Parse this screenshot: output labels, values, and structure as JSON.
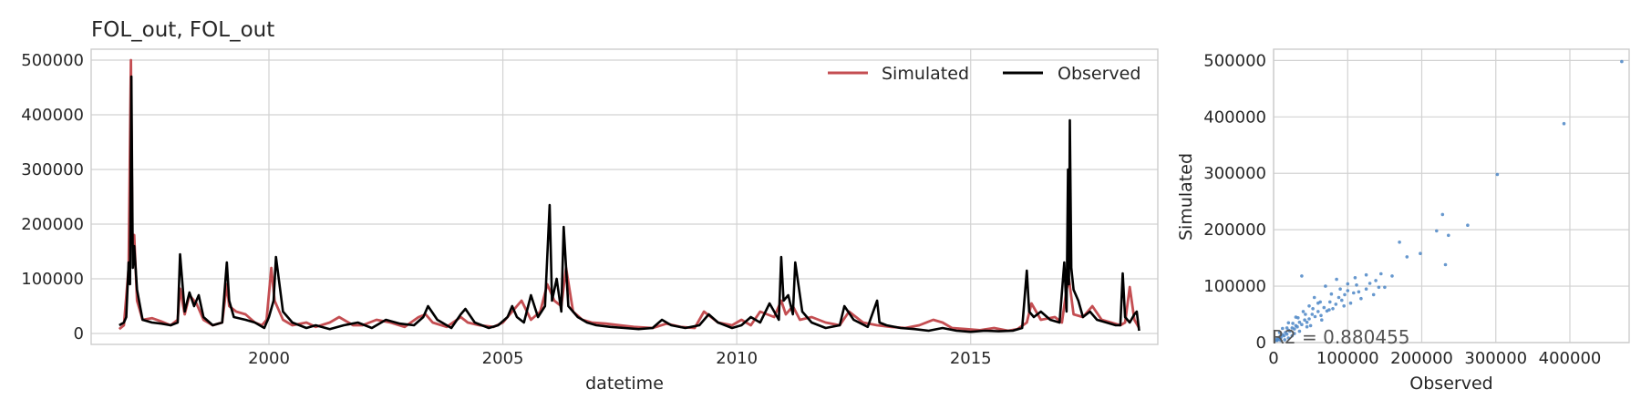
{
  "chart_data": [
    {
      "type": "line",
      "title": "FOL_out, FOL_out",
      "xlabel": "datetime",
      "ylabel": "",
      "xlim": [
        1996.2,
        2019.0
      ],
      "ylim": [
        -20000,
        520000
      ],
      "xticks": [
        "2000",
        "2005",
        "2010",
        "2015"
      ],
      "yticks": [
        "0",
        "100000",
        "200000",
        "300000",
        "400000",
        "500000"
      ],
      "grid": true,
      "legend_position": "top-right",
      "series": [
        {
          "name": "Simulated",
          "color": "#c44e52",
          "x": [
            1996.8,
            1996.9,
            1997.0,
            1997.05,
            1997.08,
            1997.12,
            1997.18,
            1997.3,
            1997.5,
            1997.7,
            1997.9,
            1998.05,
            1998.1,
            1998.2,
            1998.3,
            1998.45,
            1998.6,
            1998.8,
            1999.0,
            1999.1,
            1999.15,
            1999.3,
            1999.5,
            1999.7,
            1999.85,
            1999.95,
            2000.05,
            2000.12,
            2000.3,
            2000.5,
            2000.8,
            2001.0,
            2001.3,
            2001.5,
            2001.8,
            2002.0,
            2002.3,
            2002.6,
            2002.9,
            2003.2,
            2003.35,
            2003.5,
            2003.8,
            2004.1,
            2004.25,
            2004.5,
            2004.8,
            2005.0,
            2005.2,
            2005.4,
            2005.6,
            2005.8,
            2005.95,
            2006.0,
            2006.1,
            2006.25,
            2006.35,
            2006.5,
            2006.7,
            2006.9,
            2007.2,
            2007.5,
            2007.8,
            2008.2,
            2008.5,
            2008.8,
            2009.1,
            2009.3,
            2009.6,
            2009.9,
            2010.1,
            2010.3,
            2010.5,
            2010.8,
            2010.95,
            2011.05,
            2011.2,
            2011.35,
            2011.6,
            2011.9,
            2012.2,
            2012.4,
            2012.7,
            2013.0,
            2013.3,
            2013.6,
            2013.9,
            2014.2,
            2014.4,
            2014.6,
            2014.9,
            2015.2,
            2015.5,
            2015.8,
            2016.0,
            2016.2,
            2016.3,
            2016.5,
            2016.8,
            2016.95,
            2017.05,
            2017.1,
            2017.2,
            2017.4,
            2017.6,
            2017.8,
            2018.0,
            2018.2,
            2018.3,
            2018.4,
            2018.5,
            2018.6
          ],
          "y": [
            8000,
            15000,
            120000,
            500000,
            170000,
            180000,
            60000,
            25000,
            28000,
            22000,
            15000,
            25000,
            82000,
            35000,
            70000,
            55000,
            25000,
            15000,
            20000,
            90000,
            50000,
            40000,
            35000,
            20000,
            15000,
            25000,
            120000,
            60000,
            25000,
            15000,
            20000,
            12000,
            20000,
            30000,
            15000,
            15000,
            25000,
            20000,
            12000,
            30000,
            35000,
            20000,
            12000,
            30000,
            20000,
            15000,
            12000,
            20000,
            40000,
            60000,
            25000,
            40000,
            90000,
            80000,
            60000,
            50000,
            120000,
            40000,
            25000,
            20000,
            18000,
            15000,
            12000,
            10000,
            18000,
            12000,
            10000,
            40000,
            20000,
            15000,
            25000,
            15000,
            40000,
            30000,
            60000,
            35000,
            50000,
            25000,
            30000,
            20000,
            15000,
            40000,
            20000,
            15000,
            12000,
            10000,
            15000,
            25000,
            20000,
            10000,
            8000,
            6000,
            10000,
            5000,
            8000,
            20000,
            55000,
            25000,
            30000,
            20000,
            80000,
            100000,
            35000,
            30000,
            50000,
            25000,
            20000,
            15000,
            20000,
            85000,
            25000,
            10000
          ]
        },
        {
          "name": "Observed",
          "color": "#000000",
          "x": [
            1996.8,
            1996.9,
            1996.95,
            1997.0,
            1997.03,
            1997.06,
            1997.09,
            1997.12,
            1997.18,
            1997.3,
            1997.5,
            1997.7,
            1997.9,
            1998.05,
            1998.1,
            1998.2,
            1998.3,
            1998.4,
            1998.5,
            1998.6,
            1998.8,
            1999.0,
            1999.1,
            1999.15,
            1999.25,
            1999.5,
            1999.7,
            1999.9,
            2000.0,
            2000.1,
            2000.15,
            2000.3,
            2000.5,
            2000.8,
            2001.0,
            2001.3,
            2001.6,
            2001.9,
            2002.2,
            2002.5,
            2002.8,
            2003.1,
            2003.3,
            2003.4,
            2003.6,
            2003.9,
            2004.1,
            2004.2,
            2004.4,
            2004.7,
            2004.9,
            2005.1,
            2005.2,
            2005.3,
            2005.45,
            2005.6,
            2005.75,
            2005.9,
            2006.0,
            2006.05,
            2006.15,
            2006.25,
            2006.3,
            2006.4,
            2006.6,
            2006.8,
            2007.0,
            2007.3,
            2007.6,
            2007.9,
            2008.2,
            2008.4,
            2008.6,
            2008.9,
            2009.2,
            2009.4,
            2009.6,
            2009.9,
            2010.1,
            2010.3,
            2010.5,
            2010.7,
            2010.9,
            2010.95,
            2011.0,
            2011.1,
            2011.2,
            2011.25,
            2011.4,
            2011.6,
            2011.9,
            2012.2,
            2012.3,
            2012.5,
            2012.8,
            2013.0,
            2013.05,
            2013.2,
            2013.5,
            2013.8,
            2014.1,
            2014.4,
            2014.7,
            2015.0,
            2015.3,
            2015.6,
            2015.9,
            2016.1,
            2016.2,
            2016.25,
            2016.35,
            2016.5,
            2016.7,
            2016.9,
            2017.0,
            2017.05,
            2017.08,
            2017.1,
            2017.12,
            2017.15,
            2017.2,
            2017.3,
            2017.4,
            2017.55,
            2017.7,
            2017.9,
            2018.1,
            2018.2,
            2018.25,
            2018.3,
            2018.4,
            2018.5,
            2018.55,
            2018.6
          ],
          "y": [
            15000,
            20000,
            30000,
            130000,
            90000,
            470000,
            120000,
            160000,
            80000,
            25000,
            20000,
            18000,
            15000,
            20000,
            145000,
            40000,
            75000,
            50000,
            70000,
            30000,
            15000,
            20000,
            130000,
            60000,
            30000,
            25000,
            20000,
            10000,
            30000,
            60000,
            140000,
            40000,
            20000,
            10000,
            15000,
            8000,
            15000,
            20000,
            10000,
            25000,
            18000,
            15000,
            30000,
            50000,
            25000,
            10000,
            35000,
            45000,
            20000,
            10000,
            15000,
            30000,
            50000,
            30000,
            20000,
            70000,
            30000,
            50000,
            235000,
            60000,
            100000,
            40000,
            195000,
            50000,
            30000,
            20000,
            15000,
            12000,
            10000,
            8000,
            10000,
            25000,
            15000,
            10000,
            15000,
            35000,
            20000,
            10000,
            15000,
            30000,
            20000,
            55000,
            25000,
            140000,
            60000,
            70000,
            35000,
            130000,
            40000,
            20000,
            10000,
            15000,
            50000,
            25000,
            12000,
            60000,
            20000,
            15000,
            10000,
            8000,
            5000,
            10000,
            5000,
            3000,
            5000,
            4000,
            5000,
            10000,
            115000,
            40000,
            30000,
            40000,
            25000,
            20000,
            130000,
            40000,
            300000,
            90000,
            390000,
            120000,
            80000,
            60000,
            30000,
            40000,
            25000,
            20000,
            15000,
            15000,
            110000,
            30000,
            20000,
            35000,
            40000,
            5000
          ]
        }
      ]
    },
    {
      "type": "scatter",
      "title": "",
      "xlabel": "Observed",
      "ylabel": "Simulated",
      "xlim": [
        0,
        480000
      ],
      "ylim": [
        0,
        520000
      ],
      "xticks": [
        "0",
        "100000",
        "200000",
        "300000",
        "400000"
      ],
      "yticks": [
        "0",
        "100000",
        "200000",
        "300000",
        "400000",
        "500000"
      ],
      "grid": true,
      "annotation": "R2 = 0.880455",
      "color": "#4c86c6",
      "points": [
        [
          470000,
          498000
        ],
        [
          392000,
          388000
        ],
        [
          302000,
          298000
        ],
        [
          262000,
          208000
        ],
        [
          228000,
          227000
        ],
        [
          220000,
          198000
        ],
        [
          236000,
          190000
        ],
        [
          232000,
          138000
        ],
        [
          198000,
          158000
        ],
        [
          180000,
          152000
        ],
        [
          170000,
          178000
        ],
        [
          145000,
          122000
        ],
        [
          142000,
          98000
        ],
        [
          138000,
          110000
        ],
        [
          135000,
          85000
        ],
        [
          130000,
          105000
        ],
        [
          125000,
          95000
        ],
        [
          118000,
          78000
        ],
        [
          112000,
          102000
        ],
        [
          108000,
          88000
        ],
        [
          104000,
          70000
        ],
        [
          100000,
          92000
        ],
        [
          96000,
          85000
        ],
        [
          92000,
          75000
        ],
        [
          88000,
          80000
        ],
        [
          84000,
          68000
        ],
        [
          80000,
          60000
        ],
        [
          76000,
          72000
        ],
        [
          72000,
          56000
        ],
        [
          68000,
          62000
        ],
        [
          64000,
          48000
        ],
        [
          60000,
          55000
        ],
        [
          56000,
          46000
        ],
        [
          52000,
          50000
        ],
        [
          48000,
          42000
        ],
        [
          45000,
          36000
        ],
        [
          42000,
          40000
        ],
        [
          38000,
          32000
        ],
        [
          35000,
          36000
        ],
        [
          32000,
          28000
        ],
        [
          30000,
          30000
        ],
        [
          28000,
          24000
        ],
        [
          25000,
          26000
        ],
        [
          22000,
          20000
        ],
        [
          20000,
          22000
        ],
        [
          18000,
          15000
        ],
        [
          16000,
          18000
        ],
        [
          14000,
          12000
        ],
        [
          12000,
          14000
        ],
        [
          10000,
          9000
        ],
        [
          9000,
          11000
        ],
        [
          8000,
          6000
        ],
        [
          7000,
          8000
        ],
        [
          6000,
          5000
        ],
        [
          5000,
          7000
        ],
        [
          4000,
          3000
        ],
        [
          3000,
          5000
        ],
        [
          2500,
          2000
        ],
        [
          15000,
          5000
        ],
        [
          25000,
          12000
        ],
        [
          35000,
          20000
        ],
        [
          50000,
          30000
        ],
        [
          60000,
          70000
        ],
        [
          55000,
          80000
        ],
        [
          40000,
          55000
        ],
        [
          30000,
          45000
        ],
        [
          20000,
          35000
        ],
        [
          12000,
          25000
        ],
        [
          8000,
          18000
        ],
        [
          70000,
          100000
        ],
        [
          85000,
          112000
        ],
        [
          48000,
          65000
        ],
        [
          38000,
          118000
        ],
        [
          90000,
          95000
        ],
        [
          110000,
          115000
        ],
        [
          125000,
          120000
        ],
        [
          20000,
          8000
        ],
        [
          28000,
          16000
        ],
        [
          45000,
          28000
        ],
        [
          65000,
          40000
        ],
        [
          75000,
          58000
        ],
        [
          95000,
          65000
        ],
        [
          115000,
          90000
        ],
        [
          10000,
          3000
        ],
        [
          18000,
          26000
        ],
        [
          26000,
          34000
        ],
        [
          33000,
          44000
        ],
        [
          43000,
          50000
        ],
        [
          53000,
          60000
        ],
        [
          63000,
          72000
        ],
        [
          78000,
          86000
        ],
        [
          100000,
          104000
        ],
        [
          150000,
          98000
        ],
        [
          160000,
          118000
        ]
      ]
    }
  ]
}
